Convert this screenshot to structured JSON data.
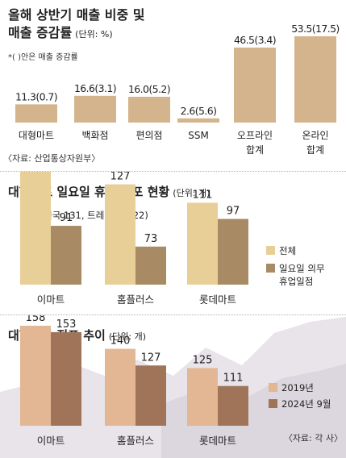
{
  "chart_data": [
    {
      "type": "bar",
      "title": "올해 상반기 매출 비중 및",
      "title_line2": "매출 증감률",
      "unit": "(단위: %)",
      "note": "*(   )안은 매출 증감률",
      "categories": [
        {
          "line1": "대형마트",
          "line2": ""
        },
        {
          "line1": "백화점",
          "line2": ""
        },
        {
          "line1": "편의점",
          "line2": ""
        },
        {
          "line1": "SSM",
          "line2": ""
        },
        {
          "line1": "오프라인",
          "line2": "합계"
        },
        {
          "line1": "온라인",
          "line2": "합계"
        }
      ],
      "values": [
        11.3,
        16.6,
        16.0,
        2.6,
        46.5,
        53.5
      ],
      "growth": [
        0.7,
        3.1,
        5.2,
        5.6,
        3.4,
        17.5
      ],
      "value_labels": [
        "11.3(0.7)",
        "16.6(3.1)",
        "16.0(5.2)",
        "2.6(5.6)",
        "46.5(3.4)",
        "53.5(17.5)"
      ],
      "source": "〈자료: 산업통상자원부〉",
      "color": "#d4b48c"
    },
    {
      "type": "bar",
      "title": "대형마트 일요일 휴업 점포 현황",
      "unit": "(단위: 개)",
      "categories": [
        "이마트",
        "홈플러스",
        "롯데마트"
      ],
      "series": [
        {
          "name": "전체",
          "values": [
            153,
            127,
            111
          ],
          "color": "#e8cf98"
        },
        {
          "name": "일요일 의무 휴업일점",
          "name_line1": "일요일 의무",
          "name_line2": "휴업일점",
          "values": [
            91,
            73,
            97
          ],
          "color": "#a88a64"
        }
      ],
      "annotation": "153 (전국 131, 트레이더스 22)"
    },
    {
      "type": "bar",
      "title": "대형마트 점포 추이",
      "unit": "(단위: 개)",
      "categories": [
        "이마트",
        "홈플러스",
        "롯데마트"
      ],
      "series": [
        {
          "name": "2019년",
          "values": [
            158,
            140,
            125
          ],
          "color": "#e3b794"
        },
        {
          "name": "2024년 9월",
          "values": [
            153,
            127,
            111
          ],
          "color": "#a07458"
        }
      ],
      "source": "〈자료: 각 사〉"
    }
  ]
}
